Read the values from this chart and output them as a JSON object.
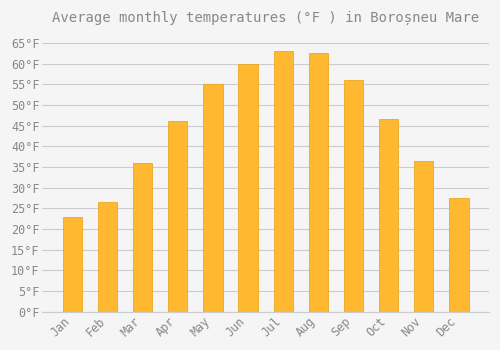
{
  "title": "Average monthly temperatures (°F ) in Boroșneu Mare",
  "months": [
    "Jan",
    "Feb",
    "Mar",
    "Apr",
    "May",
    "Jun",
    "Jul",
    "Aug",
    "Sep",
    "Oct",
    "Nov",
    "Dec"
  ],
  "values": [
    23,
    26.5,
    36,
    46,
    55,
    60,
    63,
    62.5,
    56,
    46.5,
    36.5,
    27.5
  ],
  "bar_color_top": "#FFA500",
  "bar_color_bottom": "#FFD060",
  "bar_color": "#FFB830",
  "bar_edge_color": "#E8A010",
  "background_color": "#F5F5F5",
  "plot_bg_color": "#F5F5F5",
  "grid_color": "#CCCCCC",
  "text_color": "#888888",
  "ylim": [
    0,
    68
  ],
  "yticks": [
    0,
    5,
    10,
    15,
    20,
    25,
    30,
    35,
    40,
    45,
    50,
    55,
    60,
    65
  ],
  "title_fontsize": 10,
  "tick_fontsize": 8.5,
  "bar_width": 0.55
}
